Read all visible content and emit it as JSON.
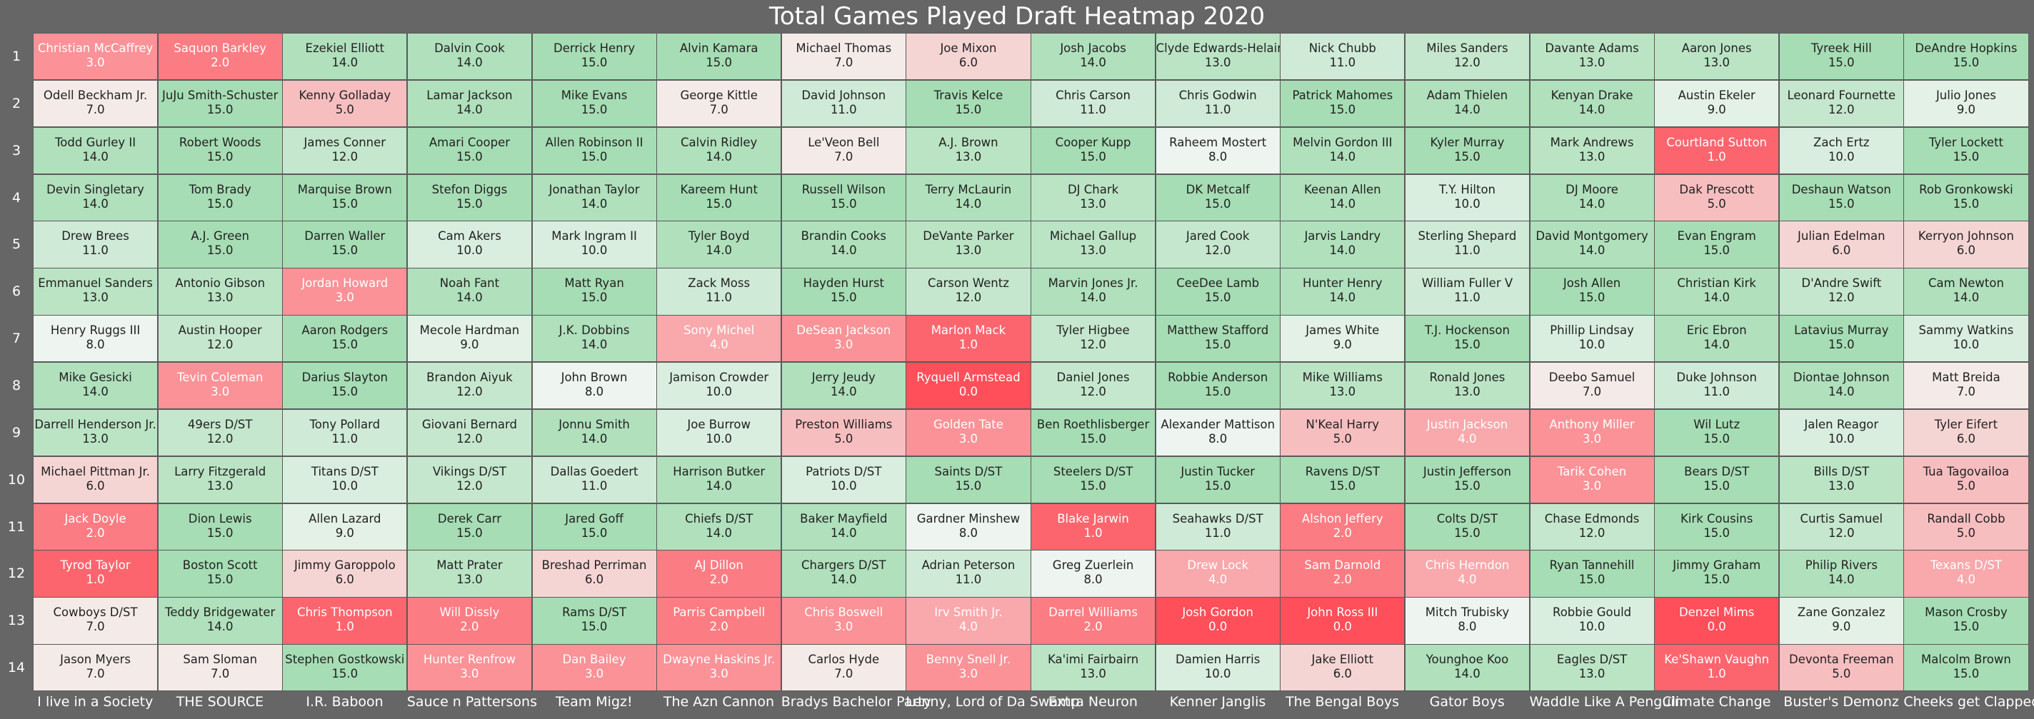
{
  "chart_data": {
    "type": "heatmap",
    "title": "Total Games Played Draft Heatmap 2020",
    "row_labels": [
      "1",
      "2",
      "3",
      "4",
      "5",
      "6",
      "7",
      "8",
      "9",
      "10",
      "11",
      "12",
      "13",
      "14"
    ],
    "col_labels": [
      "I live in a Society",
      "THE SOURCE",
      "I.R. Baboon",
      "Sauce n Pattersons",
      "Team Migz!",
      "The Azn Cannon",
      "Bradys Bachelor Party",
      "Lenny, Lord of Da Swamp",
      "Extra  Neuron",
      "Kenner Janglis",
      "The Bengal  Boys",
      "Gator  Boys",
      "Waddle Like A Penguin",
      "Climate Change",
      "Buster's Demonz",
      "Cheeks get  Clapped"
    ],
    "color_scale": {
      "low": "#ff4f5a",
      "mid": "#f3f6f3",
      "high": "#a6ddb4",
      "min": 0,
      "max": 15
    },
    "cells": [
      [
        [
          "Christian McCaffrey",
          3.0
        ],
        [
          "Saquon Barkley",
          2.0
        ],
        [
          "Ezekiel Elliott",
          14.0
        ],
        [
          "Dalvin Cook",
          14.0
        ],
        [
          "Derrick Henry",
          15.0
        ],
        [
          "Alvin Kamara",
          15.0
        ],
        [
          "Michael Thomas",
          7.0
        ],
        [
          "Joe Mixon",
          6.0
        ],
        [
          "Josh Jacobs",
          14.0
        ],
        [
          "Clyde Edwards-Helaire",
          13.0
        ],
        [
          "Nick Chubb",
          11.0
        ],
        [
          "Miles Sanders",
          12.0
        ],
        [
          "Davante Adams",
          13.0
        ],
        [
          "Aaron Jones",
          13.0
        ],
        [
          "Tyreek Hill",
          15.0
        ],
        [
          "DeAndre Hopkins",
          15.0
        ]
      ],
      [
        [
          "Odell Beckham Jr.",
          7.0
        ],
        [
          "JuJu Smith-Schuster",
          15.0
        ],
        [
          "Kenny Golladay",
          5.0
        ],
        [
          "Lamar Jackson",
          14.0
        ],
        [
          "Mike Evans",
          15.0
        ],
        [
          "George Kittle",
          7.0
        ],
        [
          "David Johnson",
          11.0
        ],
        [
          "Travis Kelce",
          15.0
        ],
        [
          "Chris Carson",
          11.0
        ],
        [
          "Chris Godwin",
          11.0
        ],
        [
          "Patrick Mahomes",
          15.0
        ],
        [
          "Adam Thielen",
          14.0
        ],
        [
          "Kenyan Drake",
          14.0
        ],
        [
          "Austin Ekeler",
          9.0
        ],
        [
          "Leonard Fournette",
          12.0
        ],
        [
          "Julio Jones",
          9.0
        ]
      ],
      [
        [
          "Todd Gurley II",
          14.0
        ],
        [
          "Robert Woods",
          15.0
        ],
        [
          "James Conner",
          12.0
        ],
        [
          "Amari Cooper",
          15.0
        ],
        [
          "Allen Robinson II",
          15.0
        ],
        [
          "Calvin Ridley",
          14.0
        ],
        [
          "Le'Veon Bell",
          7.0
        ],
        [
          "A.J. Brown",
          13.0
        ],
        [
          "Cooper Kupp",
          15.0
        ],
        [
          "Raheem Mostert",
          8.0
        ],
        [
          "Melvin Gordon III",
          14.0
        ],
        [
          "Kyler Murray",
          15.0
        ],
        [
          "Mark Andrews",
          13.0
        ],
        [
          "Courtland Sutton",
          1.0
        ],
        [
          "Zach Ertz",
          10.0
        ],
        [
          "Tyler Lockett",
          15.0
        ]
      ],
      [
        [
          "Devin Singletary",
          14.0
        ],
        [
          "Tom Brady",
          15.0
        ],
        [
          "Marquise Brown",
          15.0
        ],
        [
          "Stefon Diggs",
          15.0
        ],
        [
          "Jonathan Taylor",
          14.0
        ],
        [
          "Kareem Hunt",
          15.0
        ],
        [
          "Russell Wilson",
          15.0
        ],
        [
          "Terry McLaurin",
          14.0
        ],
        [
          "DJ Chark",
          13.0
        ],
        [
          "DK Metcalf",
          15.0
        ],
        [
          "Keenan Allen",
          14.0
        ],
        [
          "T.Y. Hilton",
          10.0
        ],
        [
          "DJ Moore",
          14.0
        ],
        [
          "Dak Prescott",
          5.0
        ],
        [
          "Deshaun Watson",
          15.0
        ],
        [
          "Rob Gronkowski",
          15.0
        ]
      ],
      [
        [
          "Drew Brees",
          11.0
        ],
        [
          "A.J. Green",
          15.0
        ],
        [
          "Darren Waller",
          15.0
        ],
        [
          "Cam Akers",
          10.0
        ],
        [
          "Mark Ingram II",
          10.0
        ],
        [
          "Tyler Boyd",
          14.0
        ],
        [
          "Brandin Cooks",
          14.0
        ],
        [
          "DeVante Parker",
          13.0
        ],
        [
          "Michael Gallup",
          13.0
        ],
        [
          "Jared Cook",
          12.0
        ],
        [
          "Jarvis Landry",
          14.0
        ],
        [
          "Sterling Shepard",
          11.0
        ],
        [
          "David Montgomery",
          14.0
        ],
        [
          "Evan Engram",
          15.0
        ],
        [
          "Julian Edelman",
          6.0
        ],
        [
          "Kerryon Johnson",
          6.0
        ]
      ],
      [
        [
          "Emmanuel Sanders",
          13.0
        ],
        [
          "Antonio Gibson",
          13.0
        ],
        [
          "Jordan Howard",
          3.0
        ],
        [
          "Noah Fant",
          14.0
        ],
        [
          "Matt Ryan",
          15.0
        ],
        [
          "Zack Moss",
          11.0
        ],
        [
          "Hayden Hurst",
          15.0
        ],
        [
          "Carson Wentz",
          12.0
        ],
        [
          "Marvin Jones Jr.",
          14.0
        ],
        [
          "CeeDee Lamb",
          15.0
        ],
        [
          "Hunter Henry",
          14.0
        ],
        [
          "William Fuller V",
          11.0
        ],
        [
          "Josh Allen",
          15.0
        ],
        [
          "Christian Kirk",
          14.0
        ],
        [
          "D'Andre Swift",
          12.0
        ],
        [
          "Cam Newton",
          14.0
        ]
      ],
      [
        [
          "Henry Ruggs III",
          8.0
        ],
        [
          "Austin Hooper",
          12.0
        ],
        [
          "Aaron Rodgers",
          15.0
        ],
        [
          "Mecole Hardman",
          9.0
        ],
        [
          "J.K. Dobbins",
          14.0
        ],
        [
          "Sony Michel",
          4.0
        ],
        [
          "DeSean Jackson",
          3.0
        ],
        [
          "Marlon Mack",
          1.0
        ],
        [
          "Tyler Higbee",
          12.0
        ],
        [
          "Matthew Stafford",
          15.0
        ],
        [
          "James White",
          9.0
        ],
        [
          "T.J. Hockenson",
          15.0
        ],
        [
          "Phillip Lindsay",
          10.0
        ],
        [
          "Eric Ebron",
          14.0
        ],
        [
          "Latavius Murray",
          15.0
        ],
        [
          "Sammy Watkins",
          10.0
        ]
      ],
      [
        [
          "Mike Gesicki",
          14.0
        ],
        [
          "Tevin Coleman",
          3.0
        ],
        [
          "Darius Slayton",
          15.0
        ],
        [
          "Brandon Aiyuk",
          12.0
        ],
        [
          "John Brown",
          8.0
        ],
        [
          "Jamison Crowder",
          10.0
        ],
        [
          "Jerry Jeudy",
          14.0
        ],
        [
          "Ryquell Armstead",
          0.0
        ],
        [
          "Daniel Jones",
          12.0
        ],
        [
          "Robbie Anderson",
          15.0
        ],
        [
          "Mike Williams",
          13.0
        ],
        [
          "Ronald Jones",
          13.0
        ],
        [
          "Deebo Samuel",
          7.0
        ],
        [
          "Duke Johnson",
          11.0
        ],
        [
          "Diontae Johnson",
          14.0
        ],
        [
          "Matt Breida",
          7.0
        ]
      ],
      [
        [
          "Darrell Henderson Jr.",
          13.0
        ],
        [
          "49ers D/ST",
          12.0
        ],
        [
          "Tony Pollard",
          11.0
        ],
        [
          "Giovani Bernard",
          12.0
        ],
        [
          "Jonnu Smith",
          14.0
        ],
        [
          "Joe Burrow",
          10.0
        ],
        [
          "Preston Williams",
          5.0
        ],
        [
          "Golden Tate",
          3.0
        ],
        [
          "Ben Roethlisberger",
          15.0
        ],
        [
          "Alexander Mattison",
          8.0
        ],
        [
          "N'Keal Harry",
          5.0
        ],
        [
          "Justin Jackson",
          4.0
        ],
        [
          "Anthony Miller",
          3.0
        ],
        [
          "Wil Lutz",
          15.0
        ],
        [
          "Jalen Reagor",
          10.0
        ],
        [
          "Tyler Eifert",
          6.0
        ]
      ],
      [
        [
          "Michael Pittman Jr.",
          6.0
        ],
        [
          "Larry Fitzgerald",
          13.0
        ],
        [
          "Titans D/ST",
          10.0
        ],
        [
          "Vikings D/ST",
          12.0
        ],
        [
          "Dallas Goedert",
          11.0
        ],
        [
          "Harrison Butker",
          14.0
        ],
        [
          "Patriots D/ST",
          10.0
        ],
        [
          "Saints D/ST",
          15.0
        ],
        [
          "Steelers D/ST",
          15.0
        ],
        [
          "Justin Tucker",
          15.0
        ],
        [
          "Ravens D/ST",
          15.0
        ],
        [
          "Justin Jefferson",
          15.0
        ],
        [
          "Tarik Cohen",
          3.0
        ],
        [
          "Bears D/ST",
          15.0
        ],
        [
          "Bills D/ST",
          13.0
        ],
        [
          "Tua Tagovailoa",
          5.0
        ]
      ],
      [
        [
          "Jack Doyle",
          2.0
        ],
        [
          "Dion Lewis",
          15.0
        ],
        [
          "Allen Lazard",
          9.0
        ],
        [
          "Derek Carr",
          15.0
        ],
        [
          "Jared Goff",
          15.0
        ],
        [
          "Chiefs D/ST",
          14.0
        ],
        [
          "Baker Mayfield",
          14.0
        ],
        [
          "Gardner Minshew",
          8.0
        ],
        [
          "Blake Jarwin",
          1.0
        ],
        [
          "Seahawks D/ST",
          11.0
        ],
        [
          "Alshon Jeffery",
          2.0
        ],
        [
          "Colts D/ST",
          15.0
        ],
        [
          "Chase Edmonds",
          12.0
        ],
        [
          "Kirk Cousins",
          15.0
        ],
        [
          "Curtis Samuel",
          12.0
        ],
        [
          "Randall Cobb",
          5.0
        ]
      ],
      [
        [
          "Tyrod Taylor",
          1.0
        ],
        [
          "Boston Scott",
          15.0
        ],
        [
          "Jimmy Garoppolo",
          6.0
        ],
        [
          "Matt Prater",
          13.0
        ],
        [
          "Breshad Perriman",
          6.0
        ],
        [
          "AJ Dillon",
          2.0
        ],
        [
          "Chargers D/ST",
          14.0
        ],
        [
          "Adrian Peterson",
          11.0
        ],
        [
          "Greg Zuerlein",
          8.0
        ],
        [
          "Drew Lock",
          4.0
        ],
        [
          "Sam Darnold",
          2.0
        ],
        [
          "Chris Herndon",
          4.0
        ],
        [
          "Ryan Tannehill",
          15.0
        ],
        [
          "Jimmy Graham",
          15.0
        ],
        [
          "Philip Rivers",
          14.0
        ],
        [
          "Texans D/ST",
          4.0
        ]
      ],
      [
        [
          "Cowboys D/ST",
          7.0
        ],
        [
          "Teddy Bridgewater",
          14.0
        ],
        [
          "Chris Thompson",
          1.0
        ],
        [
          "Will Dissly",
          2.0
        ],
        [
          "Rams D/ST",
          15.0
        ],
        [
          "Parris Campbell",
          2.0
        ],
        [
          "Chris Boswell",
          3.0
        ],
        [
          "Irv Smith Jr.",
          4.0
        ],
        [
          "Darrel Williams",
          2.0
        ],
        [
          "Josh Gordon",
          0.0
        ],
        [
          "John Ross III",
          0.0
        ],
        [
          "Mitch Trubisky",
          8.0
        ],
        [
          "Robbie Gould",
          10.0
        ],
        [
          "Denzel Mims",
          0.0
        ],
        [
          "Zane Gonzalez",
          9.0
        ],
        [
          "Mason Crosby",
          15.0
        ]
      ],
      [
        [
          "Jason Myers",
          7.0
        ],
        [
          "Sam Sloman",
          7.0
        ],
        [
          "Stephen Gostkowski",
          15.0
        ],
        [
          "Hunter Renfrow",
          3.0
        ],
        [
          "Dan Bailey",
          3.0
        ],
        [
          "Dwayne Haskins Jr.",
          3.0
        ],
        [
          "Carlos Hyde",
          7.0
        ],
        [
          "Benny Snell Jr.",
          3.0
        ],
        [
          "Ka'imi Fairbairn",
          13.0
        ],
        [
          "Damien Harris",
          10.0
        ],
        [
          "Jake Elliott",
          6.0
        ],
        [
          "Younghoe Koo",
          14.0
        ],
        [
          "Eagles D/ST",
          13.0
        ],
        [
          "Ke'Shawn Vaughn",
          1.0
        ],
        [
          "Devonta Freeman",
          5.0
        ],
        [
          "Malcolm Brown",
          15.0
        ]
      ]
    ]
  }
}
